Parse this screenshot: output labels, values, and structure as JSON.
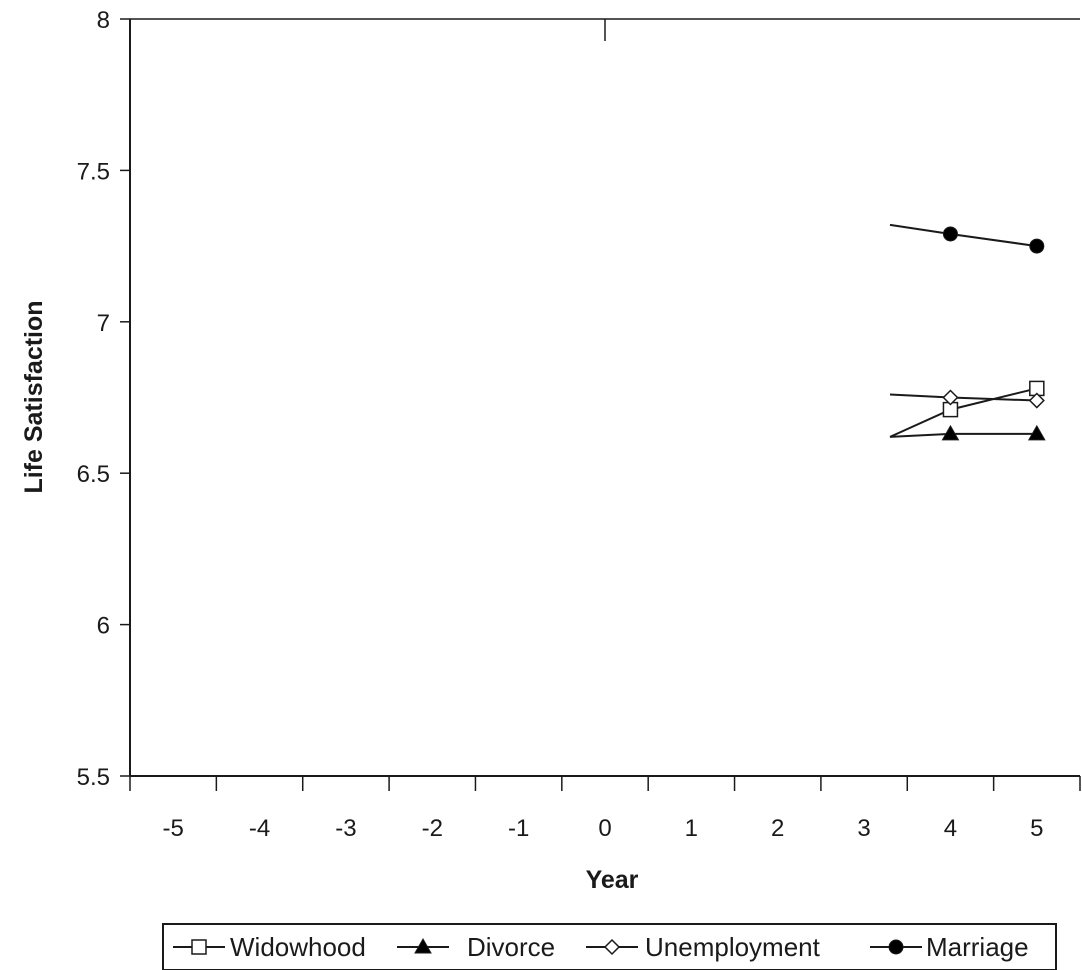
{
  "chart_data": {
    "type": "line",
    "title": "",
    "xlabel": "Year",
    "ylabel": "Life Satisfaction",
    "x_ticks": [
      "-5",
      "-4",
      "-3",
      "-2",
      "-1",
      "0",
      "1",
      "2",
      "3",
      "4",
      "5"
    ],
    "y_ticks": [
      "8",
      "7.5",
      "7",
      "6.5",
      "6",
      "5.5"
    ],
    "xlim": [
      -5.5,
      5.5
    ],
    "ylim": [
      5.5,
      8
    ],
    "grid": false,
    "legend_placement": "bottom",
    "series": [
      {
        "name": "Widowhood",
        "marker": "open-square",
        "x": [
          3.3,
          4,
          5
        ],
        "y": [
          6.62,
          6.71,
          6.78
        ]
      },
      {
        "name": "Divorce",
        "marker": "filled-triangle",
        "x": [
          3.3,
          4,
          5
        ],
        "y": [
          6.62,
          6.63,
          6.63
        ]
      },
      {
        "name": "Unemployment",
        "marker": "open-diamond",
        "x": [
          3.3,
          4,
          5
        ],
        "y": [
          6.76,
          6.75,
          6.74
        ]
      },
      {
        "name": "Marriage",
        "marker": "filled-circle",
        "x": [
          3.3,
          4,
          5
        ],
        "y": [
          7.32,
          7.29,
          7.25
        ]
      }
    ],
    "colors": {
      "line": "#1a1a1a",
      "marker_fill_solid": "#000000",
      "marker_fill_open": "#ffffff"
    }
  }
}
